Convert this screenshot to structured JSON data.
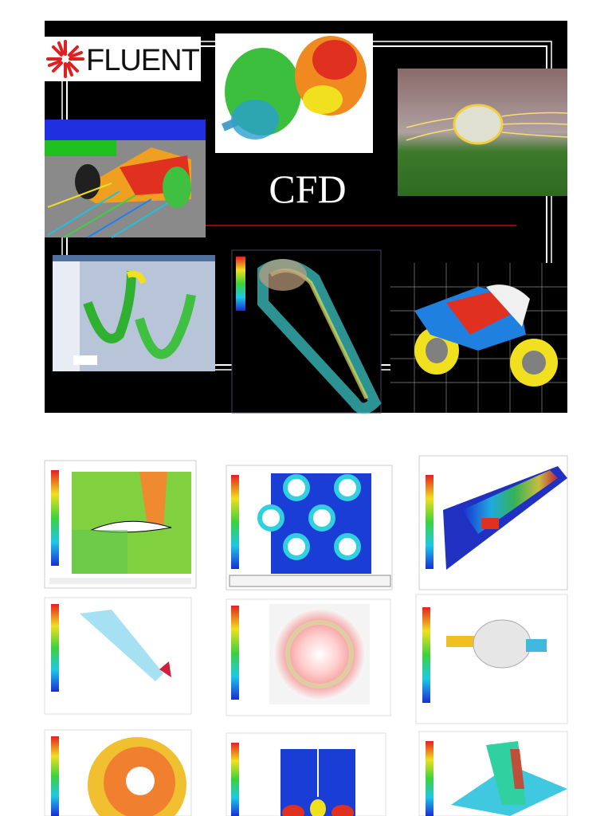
{
  "logo": {
    "text": "FLUENT"
  },
  "title": "CFD"
}
